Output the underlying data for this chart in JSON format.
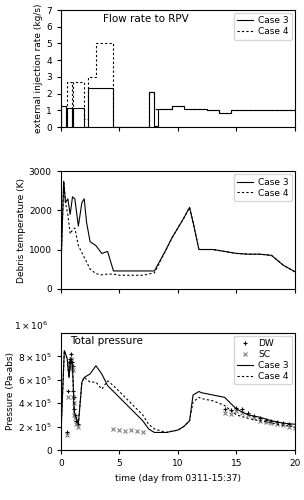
{
  "flow_case3_x": [
    0,
    0.05,
    0.05,
    0.45,
    0.45,
    0.55,
    0.55,
    0.95,
    0.95,
    1.05,
    1.05,
    2.0,
    2.0,
    2.3,
    2.3,
    4.5,
    4.5,
    7.5,
    7.5,
    8.0,
    8.0,
    8.3,
    8.3,
    9.5,
    9.5,
    10.5,
    10.5,
    11.5,
    11.5,
    12.5,
    12.5,
    13.5,
    13.5,
    14.5,
    14.5,
    15.5,
    15.5,
    17.0,
    17.0,
    20.0
  ],
  "flow_case3_y": [
    0,
    0,
    1.25,
    1.25,
    0.05,
    0.05,
    1.15,
    1.15,
    0.0,
    0.0,
    1.15,
    1.15,
    0.0,
    0.0,
    2.35,
    2.35,
    0.0,
    0.0,
    2.1,
    2.1,
    0.05,
    0.05,
    1.05,
    1.05,
    1.25,
    1.25,
    1.1,
    1.1,
    1.05,
    1.05,
    1.0,
    1.0,
    0.85,
    0.85,
    1.0,
    1.0,
    1.0,
    1.0,
    1.0,
    1.0
  ],
  "flow_case4_x": [
    0,
    0.05,
    0.05,
    0.45,
    0.45,
    0.55,
    0.55,
    0.95,
    0.95,
    1.05,
    1.05,
    2.0,
    2.0,
    2.3,
    2.3,
    3.0,
    3.0,
    4.5,
    4.5,
    7.5,
    7.5,
    8.0,
    8.0,
    9.5,
    9.5,
    10.5,
    10.5,
    11.5,
    11.5,
    12.5,
    12.5,
    13.5,
    13.5,
    14.5,
    14.5,
    15.5,
    15.5,
    17.0,
    17.0,
    20.0
  ],
  "flow_case4_y": [
    0,
    0,
    1.25,
    1.25,
    0.5,
    0.5,
    2.7,
    2.7,
    0.05,
    0.05,
    2.7,
    2.7,
    0.5,
    0.5,
    3.0,
    3.0,
    5.0,
    5.0,
    0.0,
    0.0,
    2.1,
    2.1,
    1.05,
    1.05,
    1.25,
    1.25,
    1.1,
    1.1,
    1.05,
    1.05,
    1.0,
    1.0,
    0.85,
    0.85,
    1.0,
    1.0,
    1.0,
    1.0,
    1.0,
    1.0
  ],
  "temp_case3_x": [
    0.0,
    0.25,
    0.4,
    0.6,
    0.8,
    1.0,
    1.2,
    1.5,
    1.8,
    2.0,
    2.2,
    2.5,
    3.0,
    3.5,
    4.0,
    4.5,
    5.5,
    7.0,
    8.0,
    9.0,
    9.5,
    10.0,
    10.5,
    11.0,
    11.3,
    11.8,
    12.0,
    13.0,
    14.0,
    15.0,
    16.0,
    17.0,
    18.0,
    19.0,
    20.0
  ],
  "temp_case3_y": [
    400,
    2750,
    2200,
    2300,
    1900,
    2350,
    2300,
    1600,
    2200,
    2300,
    1700,
    1200,
    1100,
    900,
    950,
    450,
    450,
    450,
    450,
    1000,
    1300,
    1550,
    1800,
    2080,
    1700,
    1000,
    1000,
    1000,
    950,
    900,
    880,
    880,
    850,
    600,
    430
  ],
  "temp_case4_x": [
    0.0,
    0.25,
    0.4,
    0.6,
    0.8,
    1.0,
    1.2,
    1.5,
    2.0,
    2.5,
    3.0,
    3.5,
    4.0,
    4.5,
    5.0,
    6.0,
    7.0,
    8.0,
    9.0,
    9.5,
    10.0,
    10.5,
    11.0,
    11.3,
    11.8,
    12.0,
    13.0,
    14.0,
    15.0,
    16.0,
    17.0,
    18.0,
    19.0,
    20.0
  ],
  "temp_case4_y": [
    400,
    2750,
    2200,
    1900,
    1400,
    1500,
    1550,
    1100,
    800,
    500,
    380,
    350,
    370,
    370,
    340,
    340,
    340,
    400,
    1000,
    1300,
    1550,
    1800,
    2080,
    1700,
    1000,
    1000,
    1000,
    950,
    900,
    880,
    880,
    850,
    600,
    430
  ],
  "press_case3_x": [
    0.0,
    0.3,
    0.55,
    0.7,
    0.85,
    1.0,
    1.15,
    1.5,
    1.8,
    2.0,
    2.5,
    3.0,
    3.5,
    4.0,
    4.5,
    5.0,
    5.5,
    6.0,
    7.0,
    7.5,
    8.0,
    9.0,
    10.0,
    10.5,
    11.0,
    11.3,
    11.8,
    12.0,
    13.0,
    14.0,
    15.0,
    16.0,
    17.0,
    18.0,
    19.0,
    20.0
  ],
  "press_case3_y": [
    100000.0,
    850000.0,
    780000.0,
    620000.0,
    780000.0,
    720000.0,
    320000.0,
    220000.0,
    580000.0,
    620000.0,
    650000.0,
    720000.0,
    650000.0,
    550000.0,
    500000.0,
    450000.0,
    400000.0,
    350000.0,
    250000.0,
    180000.0,
    150000.0,
    150000.0,
    170000.0,
    200000.0,
    250000.0,
    470000.0,
    500000.0,
    490000.0,
    470000.0,
    450000.0,
    350000.0,
    300000.0,
    280000.0,
    250000.0,
    230000.0,
    220000.0
  ],
  "press_case4_x": [
    0.0,
    0.3,
    0.55,
    0.7,
    0.85,
    1.0,
    1.15,
    1.5,
    1.8,
    2.0,
    2.5,
    3.0,
    3.5,
    4.0,
    4.5,
    5.0,
    5.5,
    6.0,
    7.0,
    7.5,
    8.0,
    9.0,
    10.0,
    10.5,
    11.0,
    11.3,
    11.8,
    12.0,
    13.0,
    14.0,
    15.0,
    16.0,
    17.0,
    18.0,
    19.0,
    20.0
  ],
  "press_case4_y": [
    100000.0,
    850000.0,
    780000.0,
    620000.0,
    780000.0,
    720000.0,
    320000.0,
    220000.0,
    580000.0,
    620000.0,
    580000.0,
    580000.0,
    520000.0,
    590000.0,
    550000.0,
    500000.0,
    450000.0,
    400000.0,
    300000.0,
    220000.0,
    180000.0,
    150000.0,
    170000.0,
    200000.0,
    250000.0,
    410000.0,
    450000.0,
    440000.0,
    420000.0,
    380000.0,
    300000.0,
    270000.0,
    250000.0,
    230000.0,
    210000.0,
    200000.0
  ],
  "dw_x": [
    0.5,
    0.6,
    0.7,
    0.75,
    0.8,
    0.85,
    0.9,
    0.95,
    1.0,
    1.05,
    1.1,
    1.15,
    1.2,
    1.3,
    1.5,
    14.0,
    14.5,
    15.0,
    15.5,
    16.0,
    16.5,
    17.0,
    17.5,
    18.0,
    18.5,
    19.0,
    19.5,
    20.0
  ],
  "dw_y": [
    150000.0,
    500000.0,
    750000.0,
    780000.0,
    750000.0,
    820000.0,
    780000.0,
    750000.0,
    720000.0,
    500000.0,
    450000.0,
    350000.0,
    300000.0,
    250000.0,
    220000.0,
    350000.0,
    340000.0,
    360000.0,
    350000.0,
    320000.0,
    290000.0,
    270000.0,
    260000.0,
    250000.0,
    240000.0,
    230000.0,
    220000.0,
    200000.0
  ],
  "sc_x": [
    0.5,
    0.6,
    0.7,
    0.75,
    0.8,
    0.85,
    0.9,
    0.95,
    1.0,
    1.05,
    1.1,
    1.15,
    1.2,
    1.3,
    1.5,
    4.5,
    5.0,
    5.5,
    6.0,
    6.5,
    7.0,
    14.0,
    14.5,
    15.0,
    15.5,
    16.0,
    16.5,
    17.0,
    17.5,
    18.0,
    18.5,
    19.0,
    19.5,
    20.0
  ],
  "sc_y": [
    130000.0,
    450000.0,
    700000.0,
    720000.0,
    700000.0,
    780000.0,
    720000.0,
    700000.0,
    680000.0,
    450000.0,
    400000.0,
    300000.0,
    270000.0,
    220000.0,
    200000.0,
    180000.0,
    170000.0,
    160000.0,
    170000.0,
    160000.0,
    150000.0,
    320000.0,
    310000.0,
    330000.0,
    320000.0,
    300000.0,
    270000.0,
    250000.0,
    240000.0,
    230000.0,
    220000.0,
    210000.0,
    200000.0,
    190000.0
  ],
  "flow_ylim": [
    0,
    7
  ],
  "flow_yticks": [
    0,
    1,
    2,
    3,
    4,
    5,
    6,
    7
  ],
  "temp_ylim": [
    0,
    3000
  ],
  "temp_yticks": [
    0,
    1000,
    2000,
    3000
  ],
  "press_ylim": [
    0,
    1000000.0
  ],
  "press_yticks": [
    0,
    200000.0,
    400000.0,
    600000.0,
    800000.0
  ],
  "xlim": [
    0,
    20
  ],
  "xticks": [
    0,
    5,
    10,
    15,
    20
  ],
  "xlabel": "time (day from 0311-15:37)",
  "flow_ylabel": "external injection rate (kg/s)",
  "temp_ylabel": "Debris temperature (K)",
  "press_ylabel": "Pressure (Pa-abs)",
  "flow_title": "Flow rate to RPV",
  "press_title": "Total pressure",
  "line_color": "black"
}
